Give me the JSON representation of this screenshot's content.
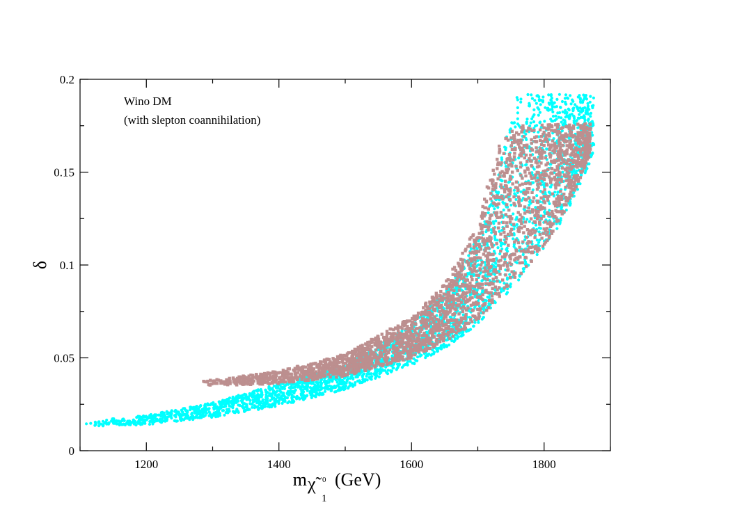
{
  "chart_data": {
    "type": "scatter",
    "title": "",
    "annotation_lines": [
      "Wino DM",
      "(with slepton coannihilation)"
    ],
    "xlabel": {
      "prefix": "m",
      "subscript_symbol": "χ̃",
      "superscript": "0",
      "subscript_index": "1",
      "suffix": "(GeV)"
    },
    "ylabel": "δ",
    "xlim": [
      1100,
      1900
    ],
    "ylim": [
      0,
      0.2
    ],
    "x_ticks": [
      {
        "value": 1200,
        "label": "1200"
      },
      {
        "value": 1400,
        "label": "1400"
      },
      {
        "value": 1600,
        "label": "1600"
      },
      {
        "value": 1800,
        "label": "1800"
      }
    ],
    "y_ticks": [
      {
        "value": 0,
        "label": "0"
      },
      {
        "value": 0.05,
        "label": "0.05"
      },
      {
        "value": 0.1,
        "label": "0.1"
      },
      {
        "value": 0.15,
        "label": "0.15"
      },
      {
        "value": 0.2,
        "label": "0.2"
      }
    ],
    "series": [
      {
        "name": "cyan points",
        "color": "#00ffff",
        "marker": "circle",
        "x_range": [
          1105,
          1875
        ],
        "delta_max": 0.192,
        "band": [
          {
            "x": 1105,
            "low": 0.013,
            "high": 0.016
          },
          {
            "x": 1200,
            "low": 0.014,
            "high": 0.019
          },
          {
            "x": 1300,
            "low": 0.018,
            "high": 0.026
          },
          {
            "x": 1400,
            "low": 0.024,
            "high": 0.036
          },
          {
            "x": 1500,
            "low": 0.033,
            "high": 0.046
          },
          {
            "x": 1600,
            "low": 0.046,
            "high": 0.068
          },
          {
            "x": 1650,
            "low": 0.055,
            "high": 0.085
          },
          {
            "x": 1700,
            "low": 0.068,
            "high": 0.115
          },
          {
            "x": 1730,
            "low": 0.08,
            "high": 0.15
          },
          {
            "x": 1760,
            "low": 0.09,
            "high": 0.192
          },
          {
            "x": 1800,
            "low": 0.108,
            "high": 0.192
          },
          {
            "x": 1830,
            "low": 0.125,
            "high": 0.192
          },
          {
            "x": 1850,
            "low": 0.14,
            "high": 0.192
          },
          {
            "x": 1875,
            "low": 0.16,
            "high": 0.192
          }
        ]
      },
      {
        "name": "brown points",
        "color": "#bc8f8f",
        "marker": "square",
        "x_range": [
          1285,
          1870
        ],
        "delta_max": 0.176,
        "band": [
          {
            "x": 1285,
            "low": 0.036,
            "high": 0.038
          },
          {
            "x": 1300,
            "low": 0.035,
            "high": 0.038
          },
          {
            "x": 1400,
            "low": 0.036,
            "high": 0.043
          },
          {
            "x": 1500,
            "low": 0.04,
            "high": 0.052
          },
          {
            "x": 1600,
            "low": 0.05,
            "high": 0.072
          },
          {
            "x": 1650,
            "low": 0.058,
            "high": 0.09
          },
          {
            "x": 1700,
            "low": 0.07,
            "high": 0.122
          },
          {
            "x": 1730,
            "low": 0.082,
            "high": 0.165
          },
          {
            "x": 1760,
            "low": 0.093,
            "high": 0.176
          },
          {
            "x": 1800,
            "low": 0.11,
            "high": 0.176
          },
          {
            "x": 1830,
            "low": 0.128,
            "high": 0.176
          },
          {
            "x": 1850,
            "low": 0.143,
            "high": 0.176
          },
          {
            "x": 1870,
            "low": 0.16,
            "high": 0.176
          }
        ]
      }
    ]
  }
}
